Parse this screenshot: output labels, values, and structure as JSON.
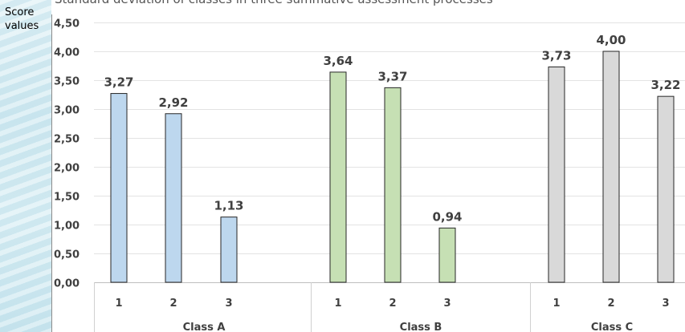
{
  "chart_data": {
    "type": "bar",
    "title": "Standard deviation of classes in three summative assessment processes",
    "ylabel_lines": [
      "Score",
      "values"
    ],
    "ylim": [
      0,
      4.5
    ],
    "yticks": [
      "0,00",
      "0,50",
      "1,00",
      "1,50",
      "2,00",
      "2,50",
      "3,00",
      "3,50",
      "4,00",
      "4,50"
    ],
    "grid": true,
    "groups": [
      {
        "name": "Class A",
        "categories": [
          "1",
          "2",
          "3"
        ],
        "values": [
          3.27,
          2.92,
          1.13
        ],
        "labels": [
          "3,27",
          "2,92",
          "1,13"
        ],
        "color": "#bdd7ee"
      },
      {
        "name": "Class B",
        "categories": [
          "1",
          "2",
          "3"
        ],
        "values": [
          3.64,
          3.37,
          0.94
        ],
        "labels": [
          "3,64",
          "3,37",
          "0,94"
        ],
        "color": "#c6e0b4"
      },
      {
        "name": "Class C",
        "categories": [
          "1",
          "2",
          "3"
        ],
        "values": [
          3.73,
          4.0,
          3.22
        ],
        "labels": [
          "3,73",
          "4,00",
          "3,22"
        ],
        "color": "#d9d9d9"
      }
    ]
  }
}
